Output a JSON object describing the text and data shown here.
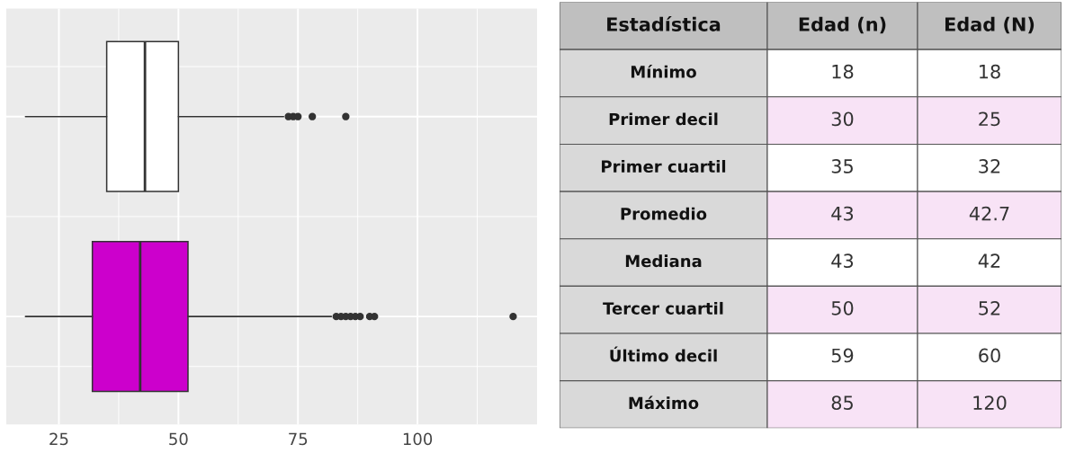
{
  "chart_data": [
    {
      "type": "box",
      "orientation": "horizontal",
      "categories": [
        null,
        null
      ],
      "colors": [
        "#ffffff",
        "#cc00cc"
      ],
      "boxes": [
        {
          "low": 18,
          "q1": 35,
          "median": 43,
          "q3": 50,
          "high": 72,
          "outliers": [
            73,
            74,
            75,
            78,
            85
          ]
        },
        {
          "low": 18,
          "q1": 32,
          "median": 42,
          "q3": 52,
          "high": 82,
          "outliers": [
            83,
            84,
            85,
            86,
            87,
            88,
            90,
            91,
            120
          ]
        }
      ],
      "xlim": [
        14,
        125
      ],
      "xticks": [
        25,
        50,
        75,
        100
      ],
      "grid": true
    },
    {
      "type": "other",
      "categories": [
        "Estadística",
        "Edad (n)",
        "Edad (N)"
      ],
      "y_categories": [
        "Mínimo",
        "Primer decil",
        "Primer cuartil",
        "Promedio",
        "Mediana",
        "Tercer cuartil",
        "Último decil",
        "Máximo"
      ],
      "cell_labels": [
        [
          "18",
          "18"
        ],
        [
          "30",
          "25"
        ],
        [
          "35",
          "32"
        ],
        [
          "43",
          "42.7"
        ],
        [
          "43",
          "42"
        ],
        [
          "50",
          "52"
        ],
        [
          "59",
          "60"
        ],
        [
          "85",
          "120"
        ]
      ]
    }
  ]
}
